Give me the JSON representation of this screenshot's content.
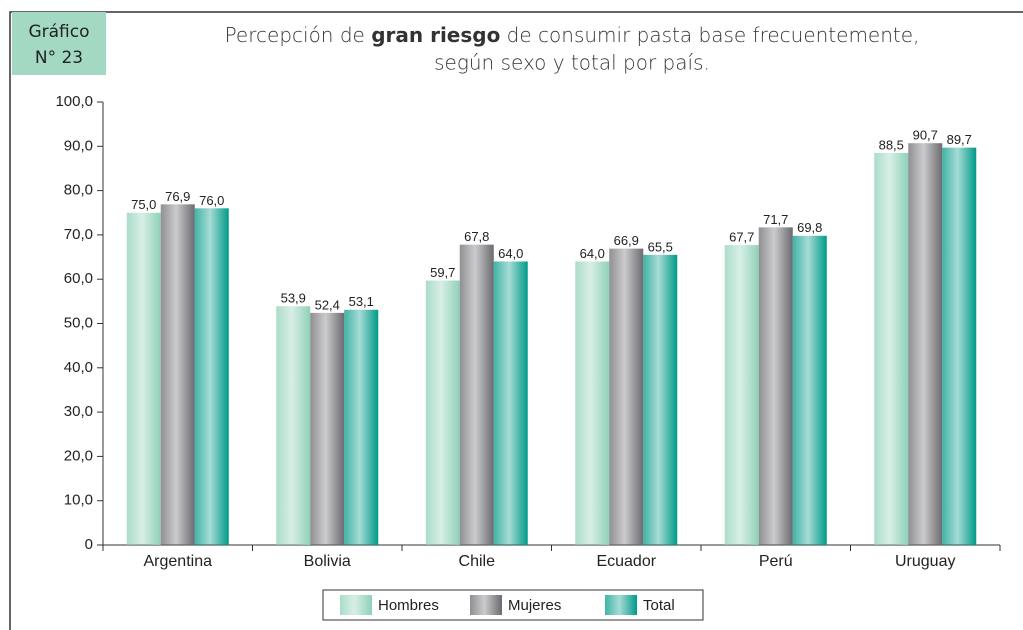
{
  "chart_data": {
    "type": "bar",
    "badge": [
      "Gráfico",
      "N° 23"
    ],
    "title": {
      "line1": [
        "Percepción de ",
        "gran riesgo",
        " de consumir pasta base frecuentemente,"
      ],
      "line2": "según sexo y total por país."
    },
    "categories": [
      "Argentina",
      "Bolivia",
      "Chile",
      "Ecuador",
      "Perú",
      "Uruguay"
    ],
    "series": [
      {
        "name": "Hombres",
        "color": "#8fd1b8",
        "values": [
          75.0,
          53.9,
          59.7,
          64.0,
          67.7,
          88.5
        ],
        "value_labels": [
          "75,0",
          "53,9",
          "59,7",
          "64,0",
          "67,7",
          "88,5"
        ]
      },
      {
        "name": "Mujeres",
        "color": "#6b6b70",
        "values": [
          76.9,
          52.4,
          67.8,
          66.9,
          71.7,
          90.7
        ],
        "value_labels": [
          "76,9",
          "52,4",
          "67,8",
          "66,9",
          "71,7",
          "90,7"
        ]
      },
      {
        "name": "Total",
        "color": "#009a88",
        "values": [
          76.0,
          53.1,
          64.0,
          65.5,
          69.8,
          89.7
        ],
        "value_labels": [
          "76,0",
          "53,1",
          "64,0",
          "65,5",
          "69,8",
          "89,7"
        ]
      }
    ],
    "ylim": [
      0,
      100
    ],
    "yticks": [
      0,
      {
        "value": 10,
        "label": "10,0"
      },
      {
        "value": 20,
        "label": "20,0"
      },
      {
        "value": 30,
        "label": "30,0"
      },
      {
        "value": 40,
        "label": "40,0"
      },
      {
        "value": 50,
        "label": "50,0"
      },
      {
        "value": 60,
        "label": "60,0"
      },
      {
        "value": 70,
        "label": "70,0"
      },
      {
        "value": 80,
        "label": "80,0"
      },
      {
        "value": 90,
        "label": "90,0"
      },
      {
        "value": 100,
        "label": "100,0"
      }
    ],
    "grid": false
  }
}
